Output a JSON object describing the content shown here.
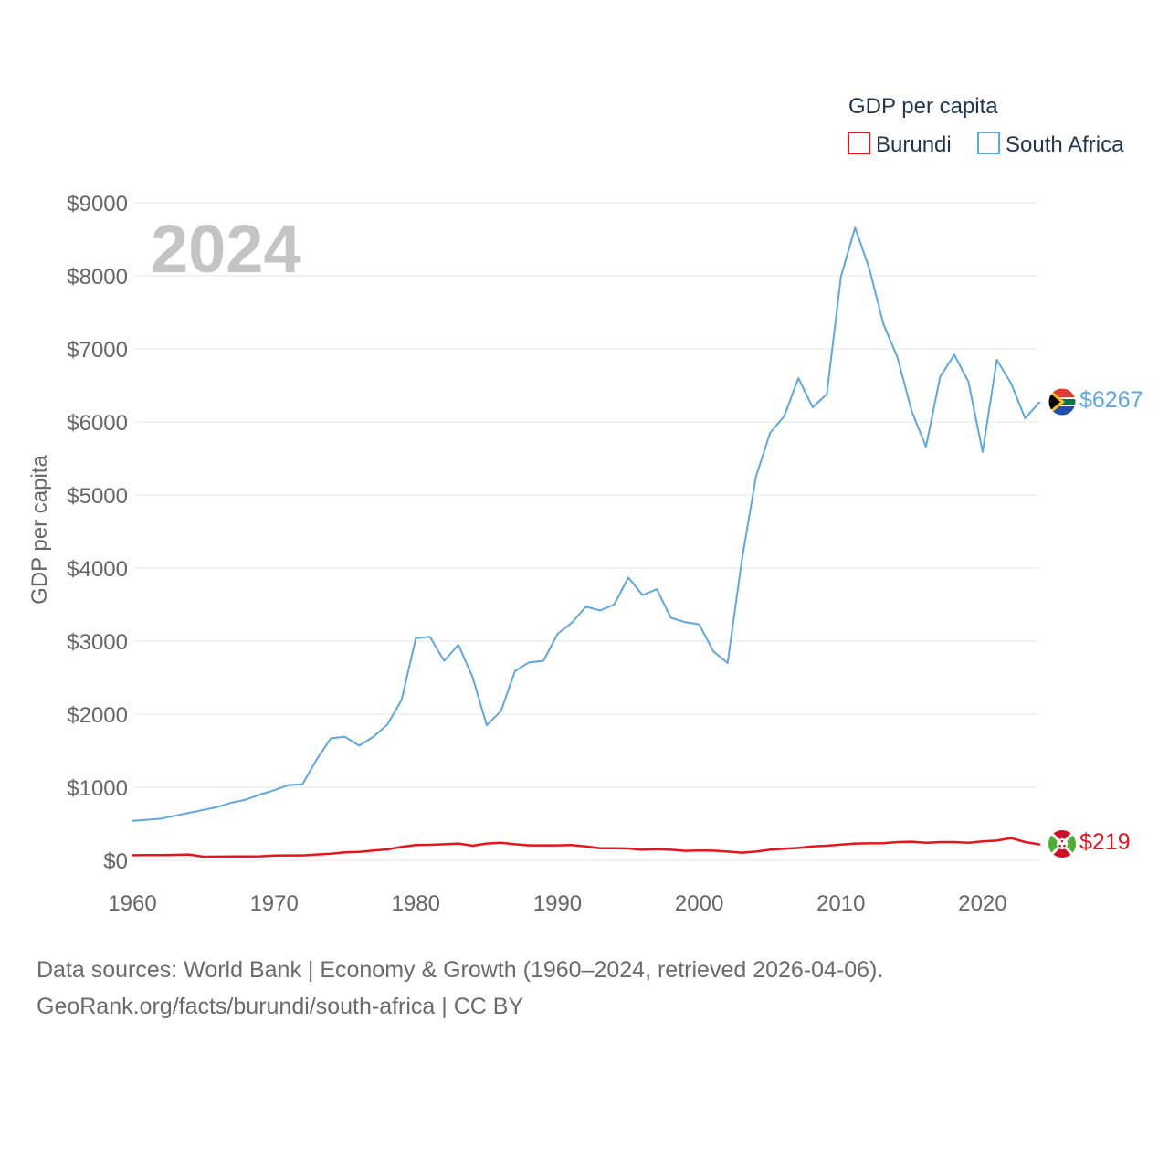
{
  "chart_data": {
    "type": "line",
    "year_label": "2024",
    "ylabel": "GDP per capita",
    "legend": {
      "title": "GDP per capita",
      "position": "top-right"
    },
    "x_ticks": [
      1960,
      1970,
      1980,
      1990,
      2000,
      2010,
      2020
    ],
    "x_tick_labels": [
      "1960",
      "1970",
      "1980",
      "1990",
      "2000",
      "2010",
      "2020"
    ],
    "y_ticks": [
      0,
      1000,
      2000,
      3000,
      4000,
      5000,
      6000,
      7000,
      8000,
      9000
    ],
    "y_tick_labels": [
      "$0",
      "$1000",
      "$2000",
      "$3000",
      "$4000",
      "$5000",
      "$6000",
      "$7000",
      "$8000",
      "$9000"
    ],
    "xlim": [
      1960,
      2024
    ],
    "ylim": [
      0,
      9000
    ],
    "grid": true,
    "x": [
      1960,
      1961,
      1962,
      1963,
      1964,
      1965,
      1966,
      1967,
      1968,
      1969,
      1970,
      1971,
      1972,
      1973,
      1974,
      1975,
      1976,
      1977,
      1978,
      1979,
      1980,
      1981,
      1982,
      1983,
      1984,
      1985,
      1986,
      1987,
      1988,
      1989,
      1990,
      1991,
      1992,
      1993,
      1994,
      1995,
      1996,
      1997,
      1998,
      1999,
      2000,
      2001,
      2002,
      2003,
      2004,
      2005,
      2006,
      2007,
      2008,
      2009,
      2010,
      2011,
      2012,
      2013,
      2014,
      2015,
      2016,
      2017,
      2018,
      2019,
      2020,
      2021,
      2022,
      2023,
      2024
    ],
    "series": [
      {
        "name": "Burundi",
        "color": "#e8141c",
        "end_label": "$219",
        "values": [
          70,
          71,
          73,
          75,
          80,
          50,
          51,
          53,
          54,
          55,
          65,
          67,
          68,
          80,
          90,
          110,
          115,
          135,
          150,
          185,
          210,
          212,
          220,
          230,
          200,
          230,
          240,
          220,
          205,
          205,
          205,
          210,
          190,
          165,
          165,
          163,
          145,
          155,
          145,
          130,
          135,
          132,
          120,
          105,
          120,
          145,
          160,
          170,
          190,
          200,
          215,
          230,
          233,
          235,
          250,
          255,
          240,
          250,
          250,
          240,
          260,
          270,
          305,
          250,
          219
        ]
      },
      {
        "name": "South Africa",
        "color": "#5ea7e5",
        "end_label": "$6267",
        "values": [
          540,
          555,
          570,
          610,
          650,
          690,
          730,
          790,
          830,
          900,
          960,
          1030,
          1040,
          1380,
          1670,
          1690,
          1570,
          1690,
          1860,
          2200,
          3040,
          3060,
          2730,
          2950,
          2510,
          1850,
          2040,
          2590,
          2710,
          2730,
          3100,
          3250,
          3470,
          3420,
          3500,
          3870,
          3630,
          3710,
          3320,
          3260,
          3230,
          2860,
          2700,
          4100,
          5250,
          5850,
          6080,
          6600,
          6200,
          6380,
          7990,
          8660,
          8100,
          7340,
          6880,
          6140,
          5660,
          6620,
          6920,
          6550,
          5590,
          6850,
          6530,
          6050,
          6267
        ]
      }
    ]
  },
  "footer": {
    "line1": "Data sources: World Bank | Economy & Growth (1960–2024, retrieved 2026-04-06).",
    "line2": "GeoRank.org/facts/burundi/south-africa | CC BY"
  }
}
